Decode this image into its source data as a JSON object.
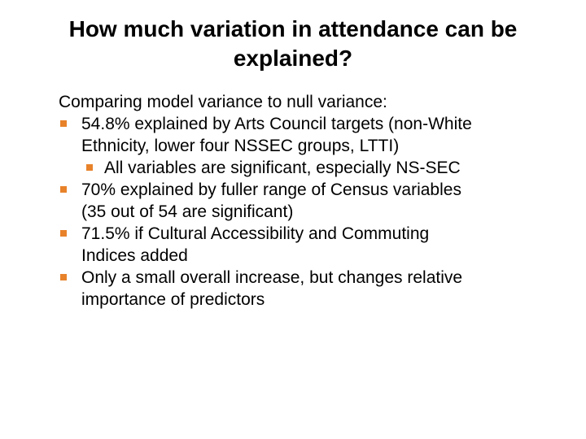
{
  "title": {
    "line1": "How much variation in attendance can be",
    "line2": "explained?"
  },
  "body": {
    "intro": "Comparing model variance to null variance:",
    "bullets": [
      {
        "lines": [
          "54.8% explained by Arts Council targets (non-White",
          "Ethnicity, lower four NSSEC groups, LTTI)"
        ]
      },
      {
        "lines": [
          "All variables are significant, especially NS-SEC"
        ]
      },
      {
        "lines": [
          "70% explained by fuller range of Census variables",
          "(35 out of 54 are significant)"
        ]
      },
      {
        "lines": [
          "71.5% if Cultural Accessibility and Commuting",
          "Indices added"
        ]
      },
      {
        "lines": [
          "Only a small overall increase, but changes relative",
          "importance of predictors"
        ]
      }
    ]
  },
  "colors": {
    "bullet_accent": "#e8822a",
    "text": "#000000",
    "background": "#ffffff"
  },
  "icons": {
    "bullet": "square-bullet-icon"
  }
}
